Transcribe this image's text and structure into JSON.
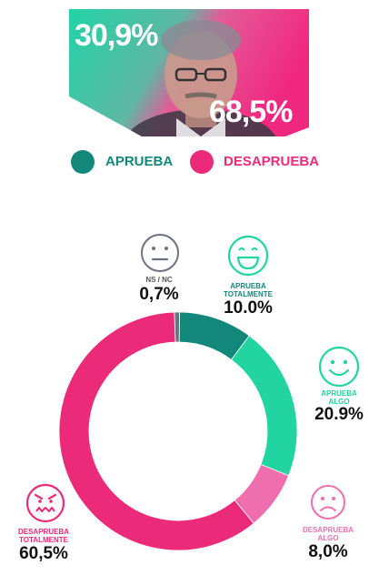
{
  "hero": {
    "approve_pct": "30,9%",
    "disapprove_pct": "68,5%"
  },
  "legend": {
    "approve": "APRUEBA",
    "disapprove": "DESAPRUEBA"
  },
  "colors": {
    "teal_dark": "#12877a",
    "teal_light": "#21d4a0",
    "pink_dark": "#ec2a7a",
    "pink_light": "#ef6fae",
    "gray": "#6b7280"
  },
  "chart_data": {
    "type": "pie",
    "categories": [
      "NS / NC",
      "APRUEBA TOTALMENTE",
      "APRUEBA ALGO",
      "DESAPRUEBA ALGO",
      "DESAPRUEBA TOTALMENTE"
    ],
    "values": [
      0.7,
      10.0,
      20.9,
      8.0,
      60.5
    ],
    "labels": {
      "nsnc": {
        "line1": "NS / NC",
        "value": "0,7%"
      },
      "aprueba_totalmente": {
        "line1": "APRUEBA",
        "line2": "TOTALMENTE",
        "value": "10.0%"
      },
      "aprueba_algo": {
        "line1": "APRUEBA",
        "line2": "ALGO",
        "value": "20.9%"
      },
      "desaprueba_algo": {
        "line1": "DESAPRUEBA",
        "line2": "ALGO",
        "value": "8,0%"
      },
      "desaprueba_totalmente": {
        "line1": "DESAPRUEBA",
        "line2": "TOTALMENTE",
        "value": "60,5%"
      }
    },
    "slice_colors": [
      "#6b7280",
      "#12877a",
      "#21d4a0",
      "#ef6fae",
      "#ec2a7a"
    ],
    "style": "donut"
  }
}
